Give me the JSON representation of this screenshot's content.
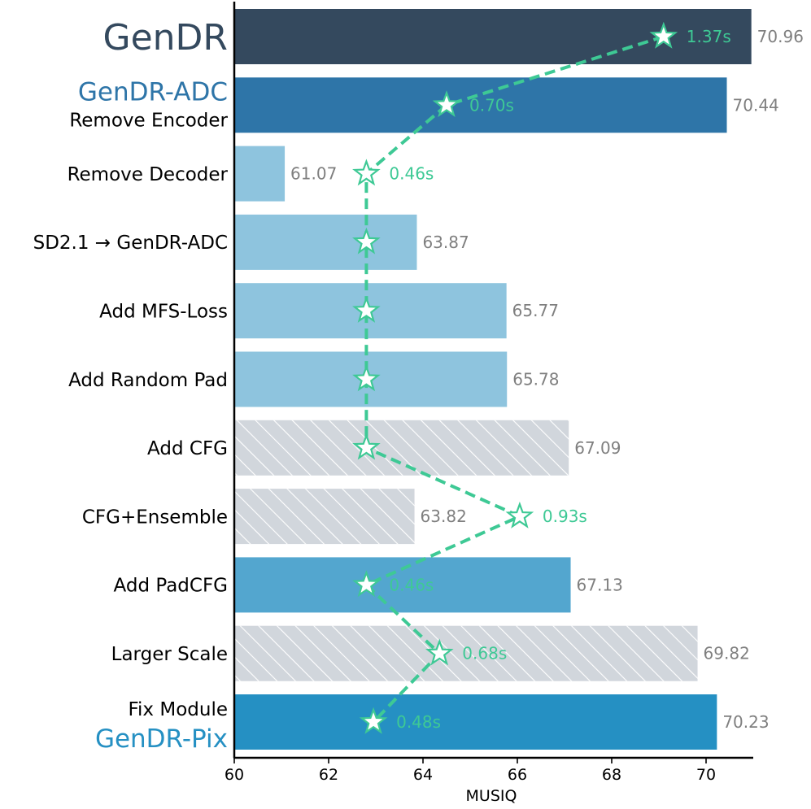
{
  "chart_data": {
    "type": "bar",
    "orientation": "horizontal",
    "xlabel": "MUSIQ",
    "xlim": [
      60,
      71
    ],
    "xticks": [
      60,
      62,
      64,
      66,
      68,
      70
    ],
    "categories": [
      {
        "lines": [
          "GenDR"
        ],
        "styles": [
          "big"
        ],
        "value": 70.96,
        "value_label": "70.96",
        "time": 1.37,
        "time_label": "1.37s",
        "time_value_x": 69.1,
        "fill": "dark",
        "hatched": false
      },
      {
        "lines": [
          "GenDR-ADC",
          "Remove Encoder"
        ],
        "styles": [
          "accent-adc",
          "normal"
        ],
        "value": 70.44,
        "value_label": "70.44",
        "time": 0.7,
        "time_label": "0.70s",
        "time_value_x": 64.5,
        "fill": "mid",
        "hatched": false
      },
      {
        "lines": [
          "Remove Decoder"
        ],
        "styles": [
          "normal"
        ],
        "value": 61.07,
        "value_label": "61.07",
        "time": 0.46,
        "time_label": "0.46s",
        "time_value_x": 62.8,
        "fill": "light",
        "hatched": false
      },
      {
        "lines": [
          "SD2.1 → GenDR-ADC"
        ],
        "styles": [
          "normal"
        ],
        "value": 63.87,
        "value_label": "63.87",
        "time": 0.46,
        "time_label": "",
        "time_value_x": 62.8,
        "fill": "light",
        "hatched": false
      },
      {
        "lines": [
          "Add MFS-Loss"
        ],
        "styles": [
          "normal"
        ],
        "value": 65.77,
        "value_label": "65.77",
        "time": 0.46,
        "time_label": "",
        "time_value_x": 62.8,
        "fill": "light",
        "hatched": false
      },
      {
        "lines": [
          "Add Random Pad"
        ],
        "styles": [
          "normal"
        ],
        "value": 65.78,
        "value_label": "65.78",
        "time": 0.46,
        "time_label": "",
        "time_value_x": 62.8,
        "fill": "light",
        "hatched": false
      },
      {
        "lines": [
          "Add CFG"
        ],
        "styles": [
          "normal"
        ],
        "value": 67.09,
        "value_label": "67.09",
        "time": 0.46,
        "time_label": "",
        "time_value_x": 62.8,
        "fill": "grey",
        "hatched": true
      },
      {
        "lines": [
          "CFG+Ensemble"
        ],
        "styles": [
          "normal"
        ],
        "value": 63.82,
        "value_label": "63.82",
        "time": 0.93,
        "time_label": "0.93s",
        "time_value_x": 66.05,
        "fill": "grey",
        "hatched": true
      },
      {
        "lines": [
          "Add PadCFG"
        ],
        "styles": [
          "normal"
        ],
        "value": 67.13,
        "value_label": "67.13",
        "time": 0.46,
        "time_label": "0.46s",
        "time_value_x": 62.8,
        "fill": "blue",
        "hatched": false
      },
      {
        "lines": [
          "Larger Scale"
        ],
        "styles": [
          "normal"
        ],
        "value": 69.82,
        "value_label": "69.82",
        "time": 0.68,
        "time_label": "0.68s",
        "time_value_x": 64.35,
        "fill": "grey",
        "hatched": true
      },
      {
        "lines": [
          "Fix Module",
          "GenDR-Pix"
        ],
        "styles": [
          "normal",
          "accent-pix"
        ],
        "value": 70.23,
        "value_label": "70.23",
        "time": 0.48,
        "time_label": "0.48s",
        "time_value_x": 62.95,
        "fill": "bright",
        "hatched": false
      }
    ],
    "series": [
      {
        "name": "MUSIQ",
        "kind": "bars"
      },
      {
        "name": "Inference time",
        "kind": "dashed-line-with-stars"
      }
    ],
    "colors": {
      "dark": "#34495e",
      "mid": "#2e75a8",
      "light": "#8ec4de",
      "blue": "#53a6cf",
      "bright": "#2590c3",
      "grey": "#d1d6dc",
      "hatch": "#ffffff",
      "value_text": "#7f7f7f",
      "time": "#3ec995",
      "accent_big": "#34495e",
      "accent_adc": "#2e75a8",
      "accent_pix": "#2590c3",
      "axis": "#000000"
    }
  }
}
